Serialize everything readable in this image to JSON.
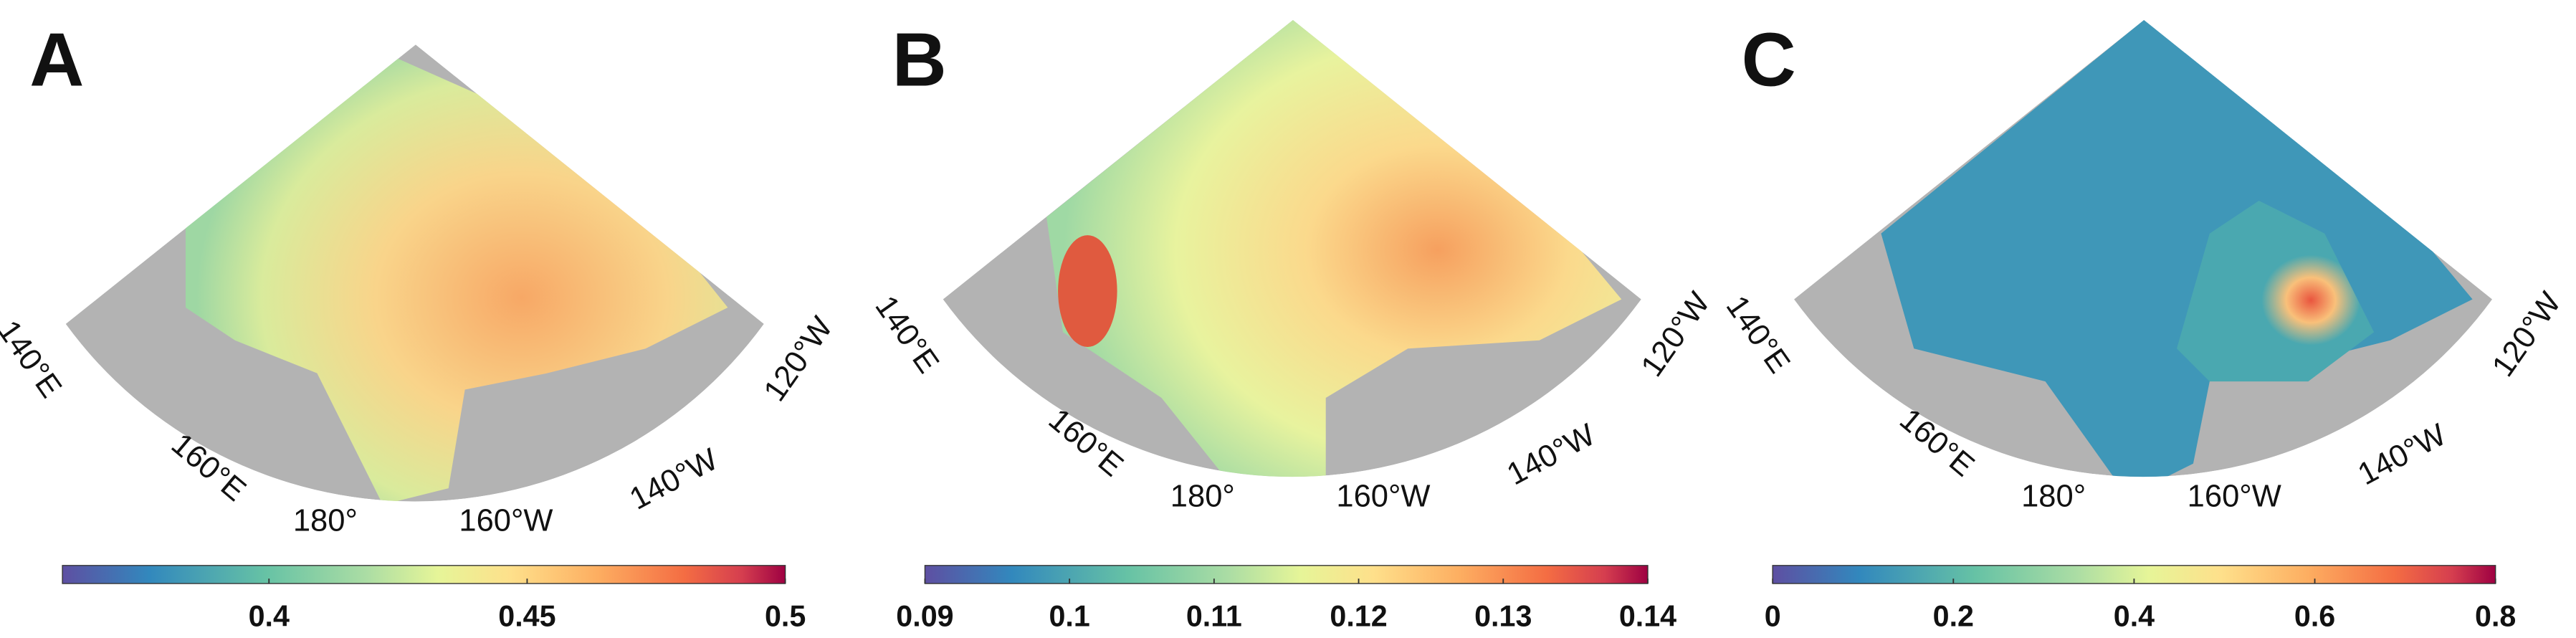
{
  "longitude_labels": [
    "140°E",
    "160°E",
    "180°",
    "160°W",
    "140°W",
    "120°W"
  ],
  "panels": [
    {
      "label": "A",
      "colorbar": {
        "lim": [
          0.36,
          0.5
        ],
        "ticks": [
          0.4,
          0.45,
          0.5
        ]
      }
    },
    {
      "label": "B",
      "colorbar": {
        "lim": [
          0.09,
          0.14
        ],
        "ticks": [
          0.09,
          0.1,
          0.11,
          0.12,
          0.13,
          0.14
        ]
      }
    },
    {
      "label": "C",
      "colorbar": {
        "lim": [
          0,
          0.8
        ],
        "ticks": [
          0,
          0.2,
          0.4,
          0.6,
          0.8
        ]
      }
    }
  ]
}
